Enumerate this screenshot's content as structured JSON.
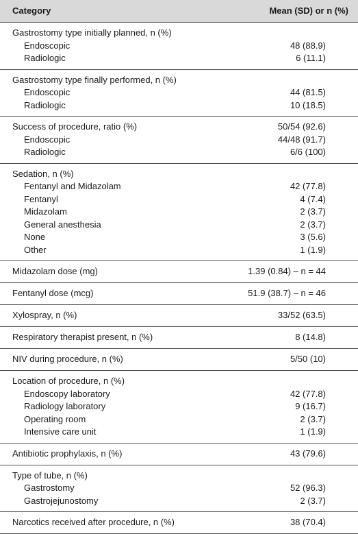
{
  "header": {
    "category": "Category",
    "value": "Mean (SD) or n (%)"
  },
  "rows": [
    {
      "group": "Gastrostomy type initially planned, n (%)",
      "items": [
        {
          "label": "Endoscopic",
          "value": "48 (88.9)"
        },
        {
          "label": "Radiologic",
          "value": "6 (11.1)"
        }
      ]
    },
    {
      "group": "Gastrostomy type finally performed, n (%)",
      "items": [
        {
          "label": "Endoscopic",
          "value": "44 (81.5)"
        },
        {
          "label": "Radiologic",
          "value": "10 (18.5)"
        }
      ]
    },
    {
      "group": "Success of procedure, ratio (%)",
      "value": "50/54 (92.6)",
      "items": [
        {
          "label": "Endoscopic",
          "value": "44/48 (91.7)"
        },
        {
          "label": "Radiologic",
          "value": "6/6 (100)"
        }
      ]
    },
    {
      "group": "Sedation, n (%)",
      "items": [
        {
          "label": "Fentanyl and Midazolam",
          "value": "42 (77.8)"
        },
        {
          "label": "Fentanyl",
          "value": "4 (7.4)"
        },
        {
          "label": "Midazolam",
          "value": "2 (3.7)"
        },
        {
          "label": "General anesthesia",
          "value": "2 (3.7)"
        },
        {
          "label": "None",
          "value": "3 (5.6)"
        },
        {
          "label": "Other",
          "value": "1 (1.9)"
        }
      ]
    },
    {
      "group": "Midazolam dose (mg)",
      "value": "1.39 (0.84) – n = 44"
    },
    {
      "group": "Fentanyl dose (mcg)",
      "value": "51.9 (38.7) – n = 46"
    },
    {
      "group": "Xylospray, n (%)",
      "value": "33/52 (63.5)"
    },
    {
      "group": "Respiratory therapist present, n (%)",
      "value": "8 (14.8)"
    },
    {
      "group": "NIV during procedure, n (%)",
      "value": "5/50 (10)"
    },
    {
      "group": "Location of procedure, n (%)",
      "items": [
        {
          "label": "Endoscopy laboratory",
          "value": "42 (77.8)"
        },
        {
          "label": "Radiology laboratory",
          "value": "9 (16.7)"
        },
        {
          "label": "Operating room",
          "value": "2 (3.7)"
        },
        {
          "label": "Intensive care unit",
          "value": "1 (1.9)"
        }
      ]
    },
    {
      "group": "Antibiotic prophylaxis, n (%)",
      "value": "43 (79.6)"
    },
    {
      "group": "Type of tube, n (%)",
      "items": [
        {
          "label": "Gastrostomy",
          "value": "52 (96.3)"
        },
        {
          "label": "Gastrojejunostomy",
          "value": "2 (3.7)"
        }
      ]
    },
    {
      "group": "Narcotics received after procedure, n (%)",
      "value": "38 (70.4)"
    }
  ]
}
